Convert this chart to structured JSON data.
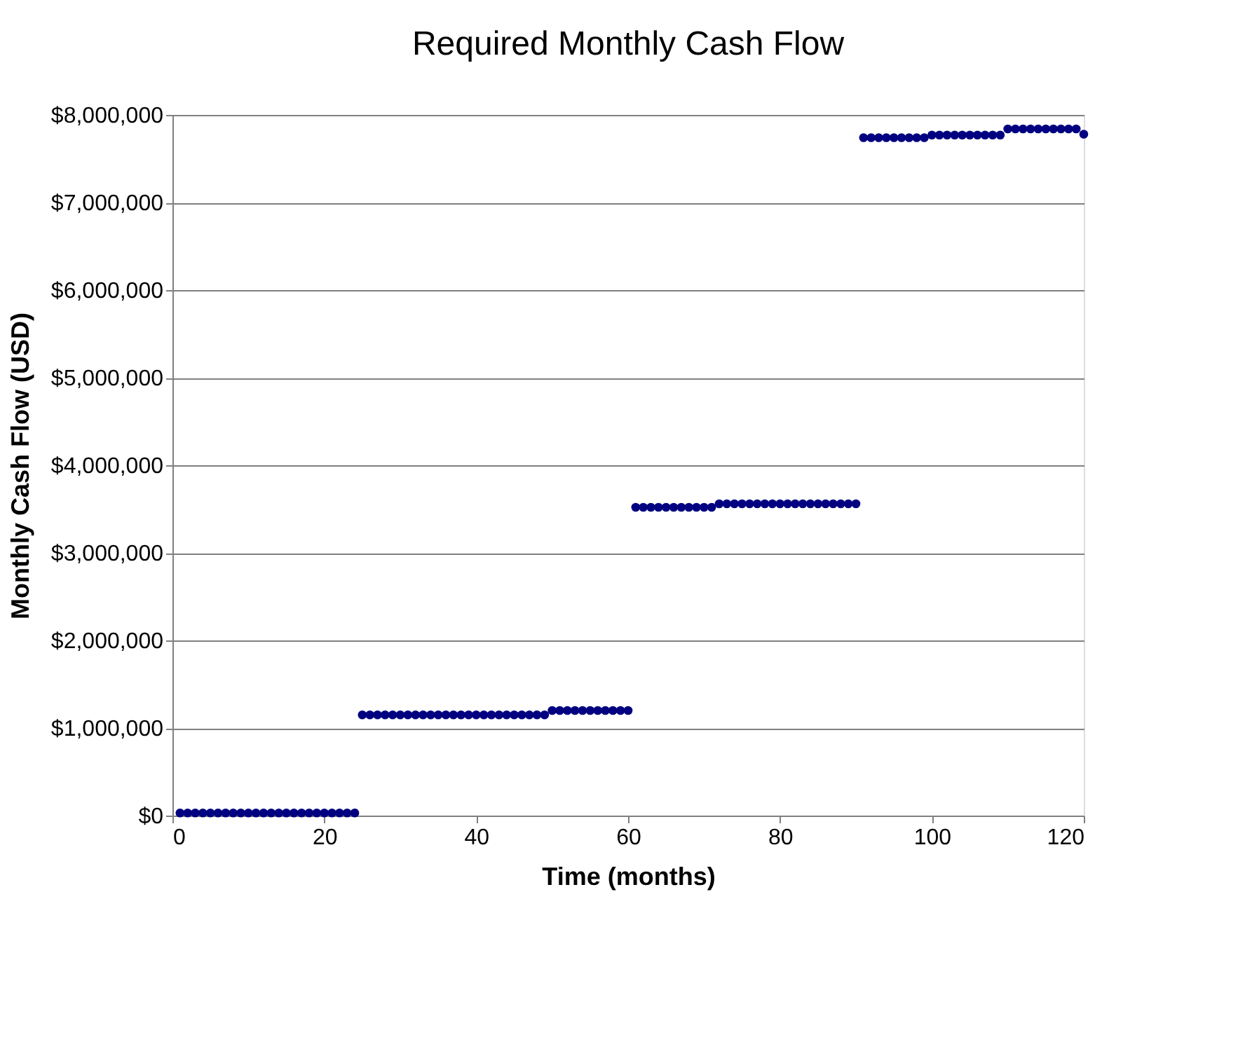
{
  "chart_data": {
    "type": "scatter",
    "title": "Required Monthly Cash Flow",
    "xlabel": "Time (months)",
    "ylabel": "Monthly Cash Flow  (USD)",
    "x": [
      1,
      2,
      3,
      4,
      5,
      6,
      7,
      8,
      9,
      10,
      11,
      12,
      13,
      14,
      15,
      16,
      17,
      18,
      19,
      20,
      21,
      22,
      23,
      24,
      25,
      26,
      27,
      28,
      29,
      30,
      31,
      32,
      33,
      34,
      35,
      36,
      37,
      38,
      39,
      40,
      41,
      42,
      43,
      44,
      45,
      46,
      47,
      48,
      49,
      50,
      51,
      52,
      53,
      54,
      55,
      56,
      57,
      58,
      59,
      60,
      61,
      62,
      63,
      64,
      65,
      66,
      67,
      68,
      69,
      70,
      71,
      72,
      73,
      74,
      75,
      76,
      77,
      78,
      79,
      80,
      81,
      82,
      83,
      84,
      85,
      86,
      87,
      88,
      89,
      90,
      91,
      92,
      93,
      94,
      95,
      96,
      97,
      98,
      99,
      100,
      101,
      102,
      103,
      104,
      105,
      106,
      107,
      108,
      109,
      110,
      111,
      112,
      113,
      114,
      115,
      116,
      117,
      118,
      119,
      120
    ],
    "series": [
      {
        "color": "#000080",
        "values": [
          30000,
          30000,
          30000,
          30000,
          30000,
          30000,
          30000,
          30000,
          30000,
          30000,
          30000,
          30000,
          30000,
          30000,
          30000,
          30000,
          30000,
          30000,
          30000,
          30000,
          30000,
          30000,
          30000,
          30000,
          1150000,
          1150000,
          1150000,
          1150000,
          1150000,
          1150000,
          1150000,
          1150000,
          1150000,
          1150000,
          1150000,
          1150000,
          1150000,
          1150000,
          1150000,
          1150000,
          1150000,
          1150000,
          1150000,
          1150000,
          1150000,
          1150000,
          1150000,
          1150000,
          1150000,
          1200000,
          1200000,
          1200000,
          1200000,
          1200000,
          1200000,
          1200000,
          1200000,
          1200000,
          1200000,
          1200000,
          3520000,
          3520000,
          3520000,
          3520000,
          3520000,
          3520000,
          3520000,
          3520000,
          3520000,
          3520000,
          3520000,
          3560000,
          3560000,
          3560000,
          3560000,
          3560000,
          3560000,
          3560000,
          3560000,
          3560000,
          3560000,
          3560000,
          3560000,
          3560000,
          3560000,
          3560000,
          3560000,
          3560000,
          3560000,
          3560000,
          7740000,
          7740000,
          7740000,
          7740000,
          7740000,
          7740000,
          7740000,
          7740000,
          7740000,
          7770000,
          7770000,
          7770000,
          7770000,
          7770000,
          7770000,
          7770000,
          7770000,
          7770000,
          7770000,
          7840000,
          7840000,
          7840000,
          7840000,
          7840000,
          7840000,
          7840000,
          7840000,
          7840000,
          7840000,
          7780000
        ]
      }
    ],
    "xlim": [
      0,
      120
    ],
    "xticks": [
      0,
      20,
      40,
      60,
      80,
      100,
      120
    ],
    "ylim": [
      0,
      8000000
    ],
    "yticks": [
      {
        "value": 0,
        "label": "$0"
      },
      {
        "value": 1000000,
        "label": "$1,000,000"
      },
      {
        "value": 2000000,
        "label": "$2,000,000"
      },
      {
        "value": 3000000,
        "label": "$3,000,000"
      },
      {
        "value": 4000000,
        "label": "$4,000,000"
      },
      {
        "value": 5000000,
        "label": "$5,000,000"
      },
      {
        "value": 6000000,
        "label": "$6,000,000"
      },
      {
        "value": 7000000,
        "label": "$7,000,000"
      },
      {
        "value": 8000000,
        "label": "$8,000,000"
      }
    ],
    "grid": "y",
    "marker": "circle",
    "legend": false
  }
}
